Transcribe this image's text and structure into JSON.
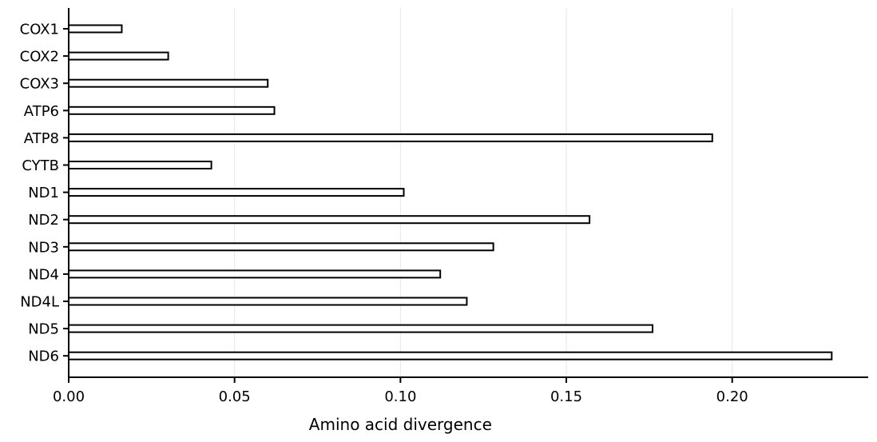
{
  "chart_data": {
    "type": "bar",
    "orientation": "horizontal",
    "title": "",
    "xlabel": "Amino acid divergence",
    "ylabel": "",
    "categories": [
      "COX1",
      "COX2",
      "COX3",
      "ATP6",
      "ATP8",
      "CYTB",
      "ND1",
      "ND2",
      "ND3",
      "ND4",
      "ND4L",
      "ND5",
      "ND6"
    ],
    "values": [
      0.016,
      0.03,
      0.06,
      0.062,
      0.194,
      0.043,
      0.101,
      0.157,
      0.128,
      0.112,
      0.12,
      0.176,
      0.23
    ],
    "xlim": [
      0.0,
      0.241
    ],
    "xticks": [
      0.0,
      0.05,
      0.1,
      0.15,
      0.2
    ],
    "xtick_labels": [
      "0.00",
      "0.05",
      "0.10",
      "0.15",
      "0.20"
    ],
    "grid": "vertical",
    "bar_fill": "#ffffff",
    "bar_edge": "#000000",
    "grid_color": "#e6e6e6",
    "axis_color": "#000000"
  }
}
